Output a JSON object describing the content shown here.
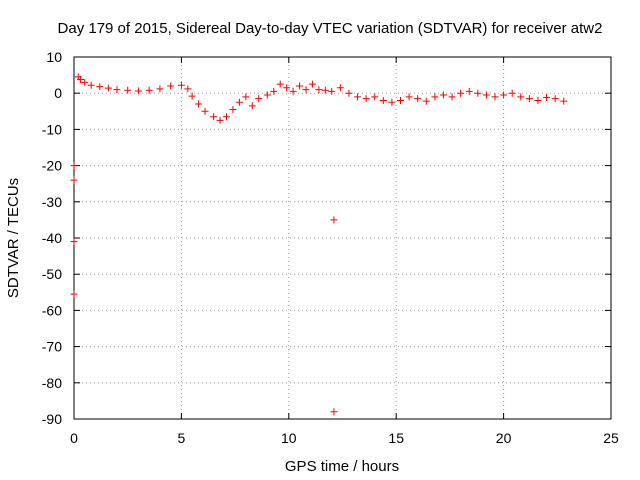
{
  "chart_data": {
    "type": "scatter",
    "title": "Day 179 of 2015, Sidereal Day-to-day VTEC variation (SDTVAR) for receiver atw2",
    "xlabel": "GPS time / hours",
    "ylabel": "SDTVAR / TECUs",
    "xlim": [
      0,
      25
    ],
    "ylim": [
      -90,
      10
    ],
    "xticks": [
      0,
      5,
      10,
      15,
      20,
      25
    ],
    "yticks": [
      10,
      0,
      -10,
      -20,
      -30,
      -40,
      -50,
      -60,
      -70,
      -80,
      -90
    ],
    "grid": true,
    "marker": "+",
    "color": "#ff0000",
    "series": [
      {
        "name": "SDTVAR",
        "points": [
          [
            0.2,
            4.5
          ],
          [
            0.3,
            3.8
          ],
          [
            0.5,
            3.0
          ],
          [
            0.8,
            2.2
          ],
          [
            1.2,
            1.8
          ],
          [
            1.6,
            1.4
          ],
          [
            2.0,
            1.0
          ],
          [
            2.5,
            0.8
          ],
          [
            3.0,
            0.6
          ],
          [
            3.5,
            0.8
          ],
          [
            4.0,
            1.2
          ],
          [
            4.5,
            2.0
          ],
          [
            5.0,
            2.2
          ],
          [
            5.3,
            1.2
          ],
          [
            5.5,
            -0.8
          ],
          [
            5.8,
            -3.0
          ],
          [
            6.1,
            -5.0
          ],
          [
            6.5,
            -6.5
          ],
          [
            6.8,
            -7.5
          ],
          [
            7.1,
            -6.5
          ],
          [
            7.4,
            -4.5
          ],
          [
            7.7,
            -2.5
          ],
          [
            8.0,
            -1.0
          ],
          [
            8.3,
            -3.5
          ],
          [
            8.6,
            -1.5
          ],
          [
            9.0,
            -0.5
          ],
          [
            9.3,
            0.5
          ],
          [
            9.6,
            2.5
          ],
          [
            9.9,
            1.5
          ],
          [
            10.2,
            0.5
          ],
          [
            10.5,
            2.0
          ],
          [
            10.8,
            1.0
          ],
          [
            11.1,
            2.5
          ],
          [
            11.4,
            1.0
          ],
          [
            11.7,
            0.8
          ],
          [
            12.0,
            0.5
          ],
          [
            12.4,
            1.5
          ],
          [
            12.8,
            0.0
          ],
          [
            13.2,
            -1.0
          ],
          [
            13.6,
            -1.5
          ],
          [
            14.0,
            -1.0
          ],
          [
            14.4,
            -2.0
          ],
          [
            14.8,
            -2.5
          ],
          [
            15.2,
            -2.0
          ],
          [
            15.6,
            -1.0
          ],
          [
            16.0,
            -1.5
          ],
          [
            16.4,
            -2.2
          ],
          [
            16.8,
            -1.0
          ],
          [
            17.2,
            -0.5
          ],
          [
            17.6,
            -1.0
          ],
          [
            18.0,
            0.0
          ],
          [
            18.4,
            0.5
          ],
          [
            18.8,
            0.0
          ],
          [
            19.2,
            -0.5
          ],
          [
            19.6,
            -1.0
          ],
          [
            20.0,
            -0.5
          ],
          [
            20.4,
            0.0
          ],
          [
            20.8,
            -1.0
          ],
          [
            21.2,
            -1.5
          ],
          [
            21.6,
            -2.0
          ],
          [
            22.0,
            -1.2
          ],
          [
            22.4,
            -1.5
          ],
          [
            22.8,
            -2.2
          ],
          [
            0.0,
            -20.0
          ],
          [
            0.0,
            -24.0
          ],
          [
            0.0,
            -41.0
          ],
          [
            0.0,
            -55.5
          ],
          [
            12.1,
            -35.0
          ],
          [
            12.1,
            -88.0
          ]
        ]
      }
    ]
  }
}
